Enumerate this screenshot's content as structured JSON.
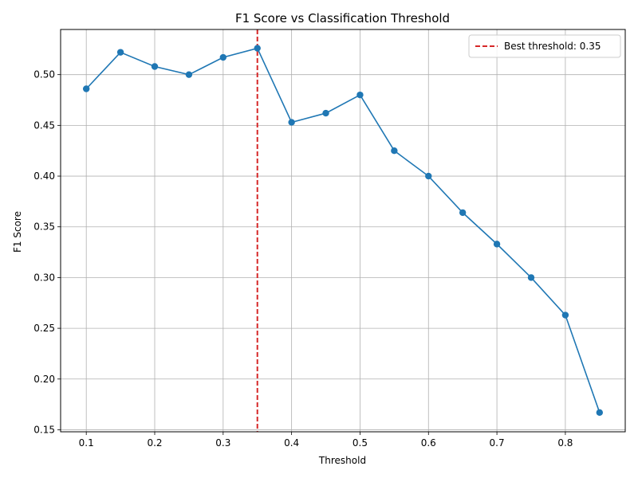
{
  "chart_data": {
    "type": "line",
    "title": "F1 Score vs Classification Threshold",
    "xlabel": "Threshold",
    "ylabel": "F1 Score",
    "xlim": [
      0.0625,
      0.8875
    ],
    "ylim": [
      0.148,
      0.5445
    ],
    "x_ticks": [
      0.1,
      0.2,
      0.3,
      0.4,
      0.5,
      0.6,
      0.7,
      0.8
    ],
    "x_tick_labels": [
      "0.1",
      "0.2",
      "0.3",
      "0.4",
      "0.5",
      "0.6",
      "0.7",
      "0.8"
    ],
    "y_ticks": [
      0.15,
      0.2,
      0.25,
      0.3,
      0.35,
      0.4,
      0.45,
      0.5
    ],
    "y_tick_labels": [
      "0.15",
      "0.20",
      "0.25",
      "0.30",
      "0.35",
      "0.40",
      "0.45",
      "0.50"
    ],
    "grid": true,
    "legend_position": "top-right",
    "series": [
      {
        "color": "#1f77b4",
        "marker": "circle",
        "x": [
          0.1,
          0.15,
          0.2,
          0.25,
          0.3,
          0.35,
          0.4,
          0.45,
          0.5,
          0.55,
          0.6,
          0.65,
          0.7,
          0.75,
          0.8,
          0.85
        ],
        "y": [
          0.486,
          0.522,
          0.508,
          0.5,
          0.517,
          0.526,
          0.453,
          0.462,
          0.48,
          0.425,
          0.4,
          0.364,
          0.333,
          0.3,
          0.263,
          0.167
        ]
      }
    ],
    "reference_lines": [
      {
        "orientation": "vertical",
        "x": 0.35,
        "color": "#d62728",
        "style": "dashed",
        "label": "Best threshold: 0.35"
      }
    ]
  }
}
